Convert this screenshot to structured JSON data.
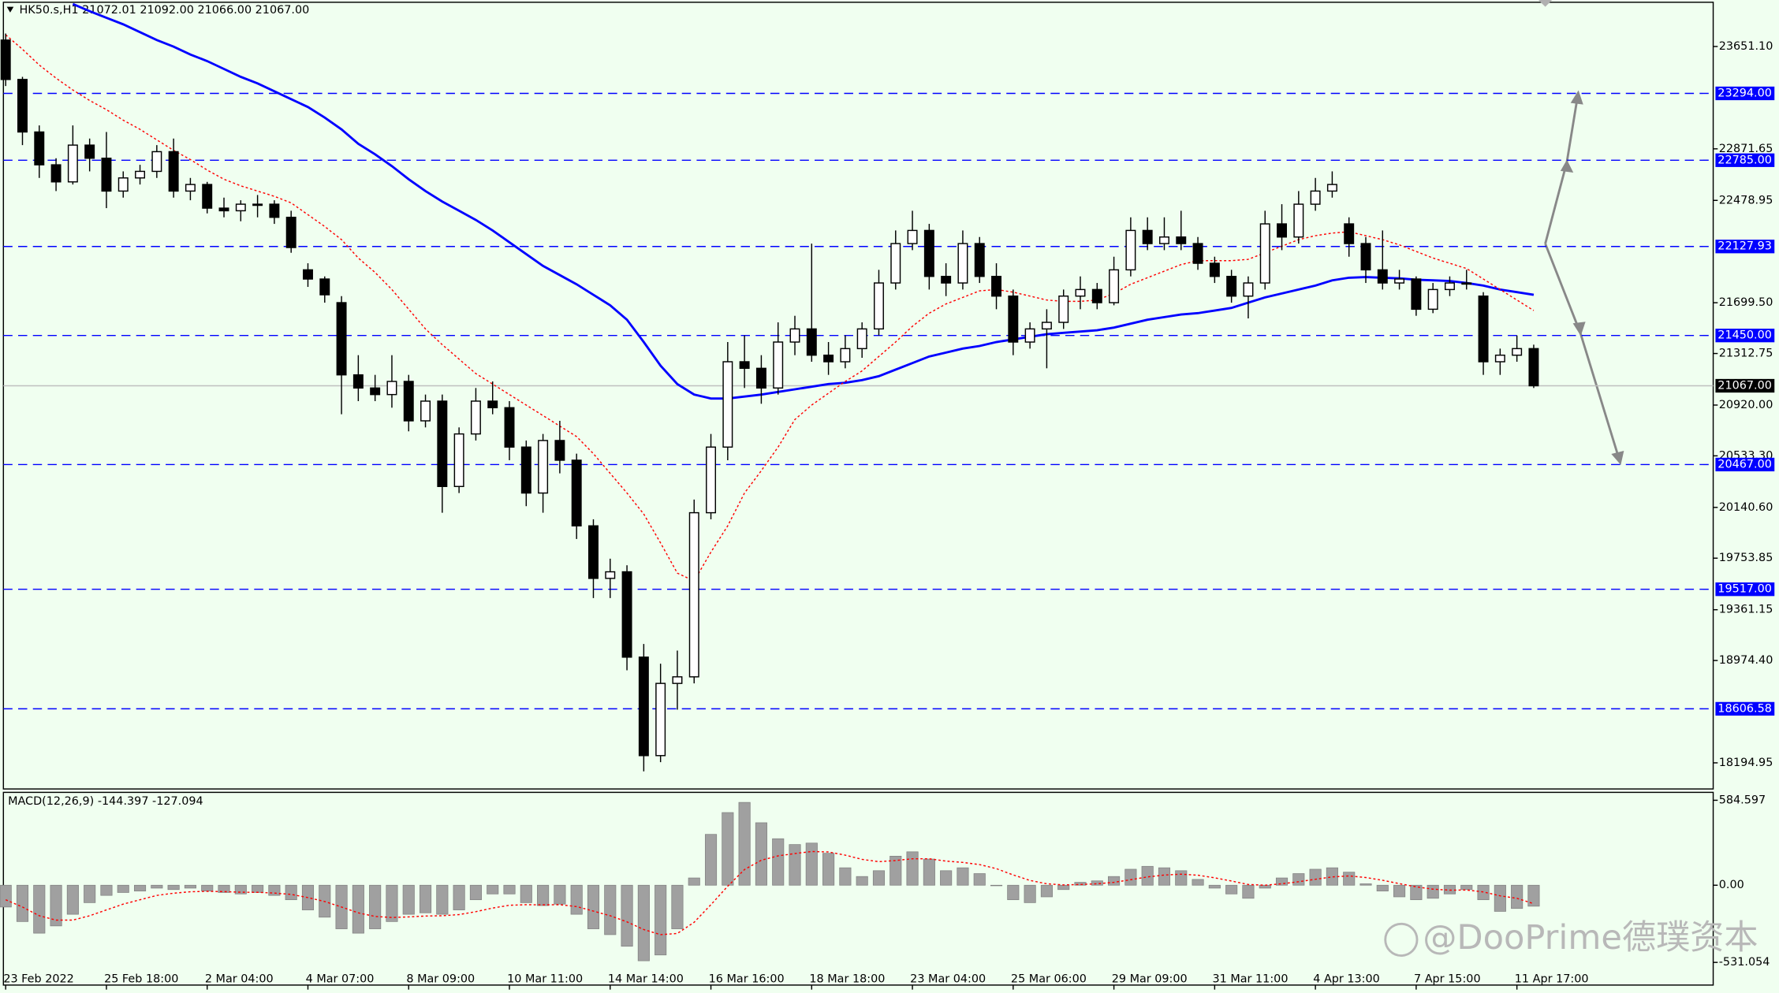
{
  "chart_data": [
    {
      "type": "candlestick",
      "title": "HK50.s,H1  21072.01 21092.00 21066.00 21067.00",
      "categories": [
        "23 Feb 2022",
        null,
        null,
        null,
        null,
        null,
        "25 Feb 18:00",
        null,
        null,
        null,
        null,
        null,
        "2 Mar 04:00",
        null,
        null,
        null,
        null,
        null,
        "4 Mar 07:00",
        null,
        null,
        null,
        null,
        null,
        "8 Mar 09:00",
        null,
        null,
        null,
        null,
        null,
        "10 Mar 11:00",
        null,
        null,
        null,
        null,
        null,
        "14 Mar 14:00",
        null,
        null,
        null,
        null,
        null,
        "16 Mar 16:00",
        null,
        null,
        null,
        null,
        null,
        "18 Mar 18:00",
        null,
        null,
        null,
        null,
        null,
        "23 Mar 04:00",
        null,
        null,
        null,
        null,
        null,
        "25 Mar 06:00",
        null,
        null,
        null,
        null,
        null,
        "29 Mar 09:00",
        null,
        null,
        null,
        null,
        null,
        "31 Mar 11:00",
        null,
        null,
        null,
        null,
        null,
        "4 Apr 13:00",
        null,
        null,
        null,
        null,
        null,
        "7 Apr 15:00",
        null,
        null,
        null,
        null,
        null,
        "11 Apr 17:00",
        null
      ],
      "open": [
        23700,
        23400,
        23000,
        22750,
        22620,
        22900,
        22800,
        22550,
        22650,
        22700,
        22850,
        22550,
        22600,
        22420,
        22400,
        22450,
        22450,
        22350,
        21950,
        21880,
        21700,
        21150,
        21050,
        21000,
        21100,
        20800,
        20950,
        20300,
        20700,
        20950,
        20900,
        20600,
        20250,
        20650,
        20500,
        20000,
        19600,
        19650,
        19000,
        18250,
        18800,
        18850,
        20100,
        20600,
        21250,
        21200,
        21050,
        21400,
        21500,
        21300,
        21250,
        21350,
        21500,
        21850,
        22150,
        22250,
        21900,
        21850,
        22150,
        21900,
        21750,
        21400,
        21500,
        21550,
        21750,
        21800,
        21700,
        21950,
        22250,
        22150,
        22200,
        22150,
        22000,
        21900,
        21750,
        21850,
        22300,
        22200,
        22450,
        22550,
        22300,
        22150,
        21950,
        21850,
        21880,
        21650,
        21800,
        21850,
        21750,
        21250,
        21300,
        21350
      ],
      "high": [
        23750,
        23420,
        23050,
        22800,
        23050,
        22950,
        23000,
        22700,
        22750,
        22900,
        22950,
        22650,
        22620,
        22500,
        22480,
        22520,
        22480,
        22400,
        22000,
        21900,
        21750,
        21300,
        21150,
        21300,
        21150,
        21000,
        21000,
        20750,
        21050,
        21100,
        20950,
        20650,
        20700,
        20800,
        20550,
        20050,
        19750,
        19700,
        19100,
        18950,
        19050,
        20200,
        20700,
        21400,
        21450,
        21300,
        21550,
        21600,
        22150,
        21400,
        21450,
        21550,
        21950,
        22250,
        22400,
        22300,
        22000,
        22250,
        22200,
        22000,
        21800,
        21550,
        21650,
        21800,
        21900,
        21850,
        22050,
        22350,
        22350,
        22350,
        22400,
        22200,
        22050,
        21950,
        21900,
        22400,
        22450,
        22550,
        22650,
        22700,
        22350,
        22200,
        22250,
        21950,
        21900,
        21850,
        21900,
        21950,
        21780,
        21350,
        21450,
        21380
      ],
      "low": [
        23350,
        22900,
        22650,
        22550,
        22600,
        22700,
        22420,
        22500,
        22600,
        22650,
        22500,
        22480,
        22380,
        22350,
        22320,
        22350,
        22300,
        22080,
        21820,
        21700,
        20850,
        20950,
        20950,
        20900,
        20720,
        20750,
        20100,
        20250,
        20650,
        20850,
        20500,
        20150,
        20100,
        20400,
        19900,
        19450,
        19450,
        18900,
        18130,
        18200,
        18600,
        18800,
        20050,
        20500,
        21050,
        20930,
        21000,
        21300,
        21250,
        21150,
        21200,
        21280,
        21450,
        21800,
        22100,
        21800,
        21750,
        21800,
        21850,
        21650,
        21300,
        21350,
        21200,
        21500,
        21650,
        21650,
        21680,
        21900,
        22100,
        22100,
        22100,
        21950,
        21850,
        21700,
        21580,
        21800,
        22100,
        22150,
        22400,
        22500,
        22050,
        21850,
        21800,
        21800,
        21600,
        21620,
        21750,
        21800,
        21150,
        21150,
        21250,
        21050
      ],
      "close": [
        23400,
        23000,
        22750,
        22620,
        22900,
        22800,
        22550,
        22650,
        22700,
        22850,
        22550,
        22600,
        22420,
        22400,
        22450,
        22450,
        22350,
        22120,
        21880,
        21760,
        21150,
        21050,
        21000,
        21100,
        20800,
        20950,
        20300,
        20700,
        20950,
        20900,
        20600,
        20250,
        20650,
        20500,
        20000,
        19600,
        19650,
        19000,
        18250,
        18800,
        18850,
        20100,
        20600,
        21250,
        21200,
        21050,
        21400,
        21500,
        21300,
        21250,
        21350,
        21500,
        21850,
        22150,
        22250,
        21900,
        21850,
        22150,
        21900,
        21750,
        21400,
        21500,
        21550,
        21750,
        21800,
        21700,
        21950,
        22250,
        22150,
        22200,
        22150,
        22000,
        21900,
        21750,
        21850,
        22300,
        22200,
        22450,
        22550,
        22600,
        22150,
        21950,
        21850,
        21880,
        21650,
        21800,
        21850,
        21850,
        21250,
        21300,
        21350,
        21067
      ],
      "candle_color": "#000000",
      "up_fill": "#ffffff",
      "down_fill": "#000000",
      "lines": [
        {
          "color": "#0000ff",
          "style": "solid",
          "values": [
            null,
            null,
            null,
            null,
            23975,
            23920,
            23870,
            23820,
            23760,
            23700,
            23650,
            23590,
            23540,
            23480,
            23420,
            23370,
            23310,
            23250,
            23190,
            23110,
            23020,
            22910,
            22830,
            22740,
            22640,
            22550,
            22470,
            22400,
            22330,
            22250,
            22160,
            22070,
            21980,
            21910,
            21840,
            21760,
            21680,
            21570,
            21400,
            21220,
            21080,
            21000,
            20970,
            20970,
            20985,
            21000,
            21020,
            21040,
            21060,
            21080,
            21090,
            21110,
            21140,
            21190,
            21240,
            21290,
            21320,
            21350,
            21370,
            21400,
            21420,
            21440,
            21460,
            21470,
            21480,
            21490,
            21510,
            21540,
            21570,
            21590,
            21610,
            21620,
            21640,
            21660,
            21700,
            21740,
            21770,
            21800,
            21830,
            21870,
            21890,
            21895,
            21890,
            21885,
            21875,
            21870,
            21865,
            21850,
            21830,
            21800,
            21780,
            21760
          ]
        },
        {
          "color": "#ff0000",
          "style": "dotted",
          "values": [
            23740,
            23630,
            23510,
            23410,
            23320,
            23240,
            23170,
            23090,
            23020,
            22940,
            22860,
            22790,
            22710,
            22640,
            22590,
            22550,
            22510,
            22460,
            22370,
            22280,
            22180,
            22040,
            21930,
            21800,
            21650,
            21500,
            21380,
            21270,
            21160,
            21080,
            21000,
            20920,
            20840,
            20760,
            20680,
            20550,
            20400,
            20250,
            20090,
            19870,
            19640,
            19580,
            19800,
            20000,
            20250,
            20420,
            20600,
            20810,
            20920,
            21010,
            21100,
            21180,
            21290,
            21400,
            21520,
            21620,
            21690,
            21740,
            21790,
            21800,
            21780,
            21750,
            21720,
            21710,
            21710,
            21720,
            21770,
            21840,
            21890,
            21940,
            21990,
            22020,
            22020,
            22020,
            22030,
            22080,
            22130,
            22180,
            22210,
            22230,
            22240,
            22210,
            22180,
            22140,
            22090,
            22040,
            22000,
            21960,
            21880,
            21800,
            21720,
            21640
          ]
        }
      ],
      "ylim": [
        17996,
        23988
      ],
      "yticks": [
        {
          "value": 23651.1,
          "label": "23651.10"
        },
        22871.65,
        22478.95,
        {
          "value": 21699.5,
          "label": "21699.50"
        },
        21312.75,
        {
          "value": 20920,
          "label": "20920.00"
        },
        {
          "value": 20533.3,
          "label": "20533.30"
        },
        {
          "value": 20140.6,
          "label": "20140.60"
        },
        19753.85,
        19361.15,
        {
          "value": 18974.4,
          "label": "18974.40"
        },
        18194.95
      ],
      "levels": [
        {
          "value": 23294,
          "label": "23294.00"
        },
        {
          "value": 22785,
          "label": "22785.00"
        },
        22127.93,
        {
          "value": 21450,
          "label": "21450.00"
        },
        {
          "value": 20467,
          "label": "20467.00"
        },
        {
          "value": 19517,
          "label": "19517.00"
        },
        18606.58
      ],
      "level_color": "#0000ff",
      "last_price": {
        "value": 21067,
        "label": "21067.00"
      },
      "watermark": "@DooPrime德璞资本"
    },
    {
      "type": "macd",
      "title": "MACD(12,26,9) -144.397 -127.094",
      "histogram": [
        -150,
        -250,
        -330,
        -280,
        -200,
        -120,
        -70,
        -50,
        -40,
        -20,
        -30,
        -20,
        -40,
        -50,
        -60,
        -50,
        -70,
        -100,
        -170,
        -220,
        -300,
        -330,
        -300,
        -250,
        -200,
        -190,
        -200,
        -170,
        -100,
        -60,
        -60,
        -120,
        -140,
        -130,
        -200,
        -300,
        -340,
        -420,
        -520,
        -480,
        -300,
        50,
        350,
        500,
        570,
        430,
        320,
        280,
        290,
        220,
        120,
        60,
        100,
        200,
        230,
        180,
        100,
        120,
        80,
        0,
        -100,
        -120,
        -80,
        -30,
        20,
        30,
        60,
        110,
        130,
        120,
        100,
        40,
        -20,
        -60,
        -90,
        -20,
        50,
        80,
        110,
        120,
        90,
        10,
        -40,
        -80,
        -100,
        -90,
        -60,
        -30,
        -100,
        -180,
        -160,
        -144.397
      ],
      "signal": [
        -100,
        -150,
        -210,
        -240,
        -240,
        -210,
        -170,
        -130,
        -100,
        -70,
        -55,
        -45,
        -42,
        -44,
        -48,
        -49,
        -54,
        -63,
        -85,
        -112,
        -150,
        -190,
        -215,
        -222,
        -218,
        -212,
        -210,
        -202,
        -182,
        -157,
        -138,
        -134,
        -135,
        -134,
        -147,
        -178,
        -210,
        -252,
        -305,
        -340,
        -332,
        -255,
        -134,
        -7,
        108,
        172,
        202,
        218,
        232,
        229,
        207,
        178,
        162,
        170,
        182,
        182,
        166,
        157,
        142,
        114,
        71,
        33,
        10,
        2,
        5,
        10,
        20,
        38,
        57,
        70,
        76,
        69,
        51,
        29,
        5,
        0,
        10,
        24,
        41,
        57,
        64,
        53,
        34,
        11,
        -11,
        -27,
        -34,
        -33,
        -46,
        -73,
        -90,
        -127.094
      ],
      "histogram_color": "#a0a0a0",
      "signal_color": "#ff0000",
      "ylim": [
        -687,
        639
      ],
      "yticks": [
        584.597,
        {
          "value": 0,
          "label": "0.00"
        },
        -531.054
      ]
    }
  ]
}
